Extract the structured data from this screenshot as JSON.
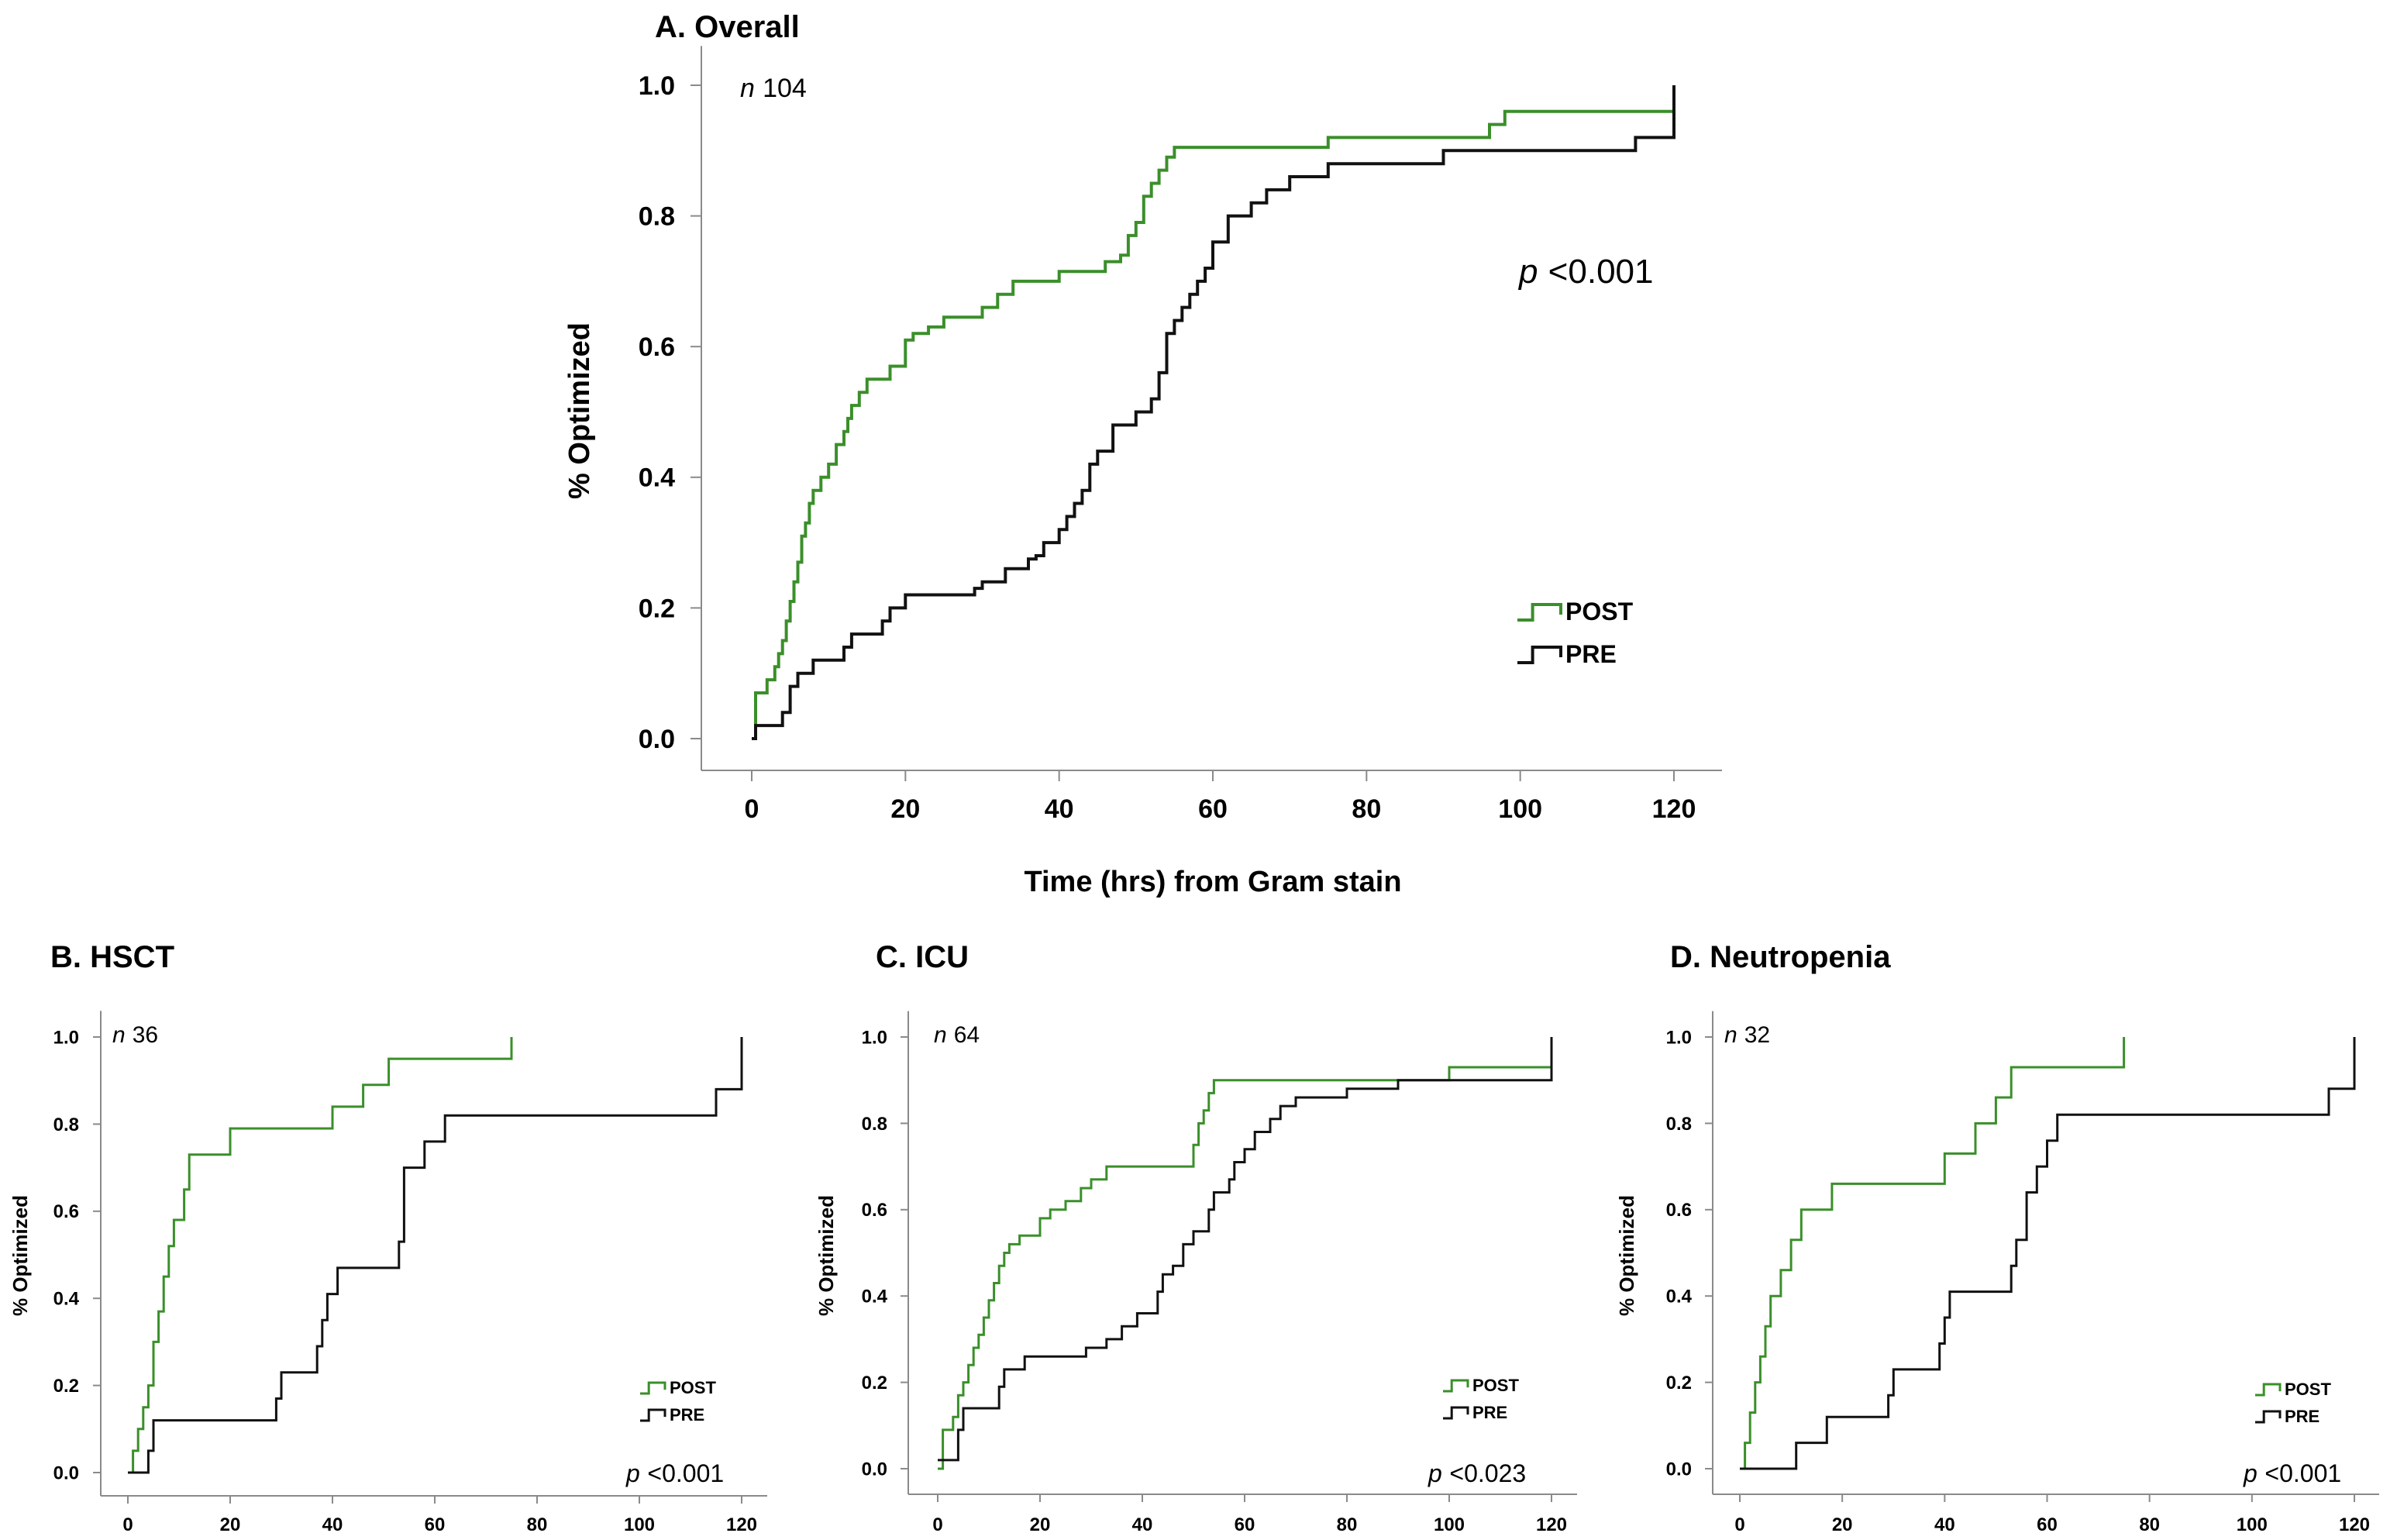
{
  "colors": {
    "post": "#3a8f2a",
    "pre": "#111111",
    "axis": "#8a8a8a",
    "text": "#000000"
  },
  "chart_data": [
    {
      "id": "A",
      "type": "line",
      "title": "A. Overall",
      "n_italic": "n",
      "n_value": "104",
      "xlabel": "Time (hrs) from Gram stain",
      "ylabel": "% Optimized",
      "xlim": [
        0,
        120
      ],
      "ylim": [
        0,
        1.0
      ],
      "x_ticks": [
        "0",
        "20",
        "40",
        "60",
        "80",
        "100",
        "120"
      ],
      "y_ticks": [
        "0.0",
        "0.2",
        "0.4",
        "0.6",
        "0.8",
        "1.0"
      ],
      "p_italic": "p",
      "p_value": "<0.001",
      "legend": [
        "POST",
        "PRE"
      ],
      "series": [
        {
          "name": "POST",
          "step": true,
          "x": [
            0,
            0.5,
            2,
            3,
            3.5,
            4,
            4.5,
            5,
            5.5,
            6,
            6.5,
            7,
            7.5,
            8,
            9,
            10,
            11,
            12,
            12.5,
            13,
            14,
            15,
            16,
            18,
            20,
            21,
            23,
            25,
            30,
            32,
            34,
            40,
            46,
            48,
            49,
            50,
            51,
            52,
            53,
            54,
            55,
            75,
            96,
            98,
            120
          ],
          "y": [
            0,
            0.07,
            0.09,
            0.11,
            0.13,
            0.15,
            0.18,
            0.21,
            0.24,
            0.27,
            0.31,
            0.33,
            0.36,
            0.38,
            0.4,
            0.42,
            0.45,
            0.47,
            0.49,
            0.51,
            0.53,
            0.55,
            0.55,
            0.57,
            0.61,
            0.62,
            0.63,
            0.645,
            0.66,
            0.68,
            0.7,
            0.715,
            0.73,
            0.74,
            0.77,
            0.79,
            0.83,
            0.85,
            0.87,
            0.89,
            0.905,
            0.92,
            0.94,
            0.96,
            0.96
          ]
        },
        {
          "name": "PRE",
          "step": true,
          "x": [
            0,
            0.5,
            4,
            5,
            6,
            8,
            12,
            13,
            17,
            18,
            20,
            29,
            30,
            33,
            36,
            37,
            38,
            40,
            41,
            42,
            43,
            44,
            45,
            47,
            50,
            52,
            53,
            54,
            55,
            56,
            57,
            58,
            59,
            60,
            62,
            65,
            67,
            70,
            75,
            80,
            90,
            115,
            120
          ],
          "y": [
            0,
            0.02,
            0.04,
            0.08,
            0.1,
            0.12,
            0.14,
            0.16,
            0.18,
            0.2,
            0.22,
            0.23,
            0.24,
            0.26,
            0.275,
            0.28,
            0.3,
            0.32,
            0.34,
            0.36,
            0.38,
            0.42,
            0.44,
            0.48,
            0.5,
            0.52,
            0.56,
            0.62,
            0.64,
            0.66,
            0.68,
            0.7,
            0.72,
            0.76,
            0.8,
            0.82,
            0.84,
            0.86,
            0.88,
            0.88,
            0.9,
            0.92,
            1.0
          ]
        }
      ]
    },
    {
      "id": "B",
      "type": "line",
      "title": "B. HSCT",
      "n_italic": "n",
      "n_value": "36",
      "xlabel": "",
      "ylabel": "% Optimized",
      "xlim": [
        0,
        120
      ],
      "ylim": [
        0,
        1.0
      ],
      "x_ticks": [
        "0",
        "20",
        "40",
        "60",
        "80",
        "100",
        "120"
      ],
      "y_ticks": [
        "0.0",
        "0.2",
        "0.4",
        "0.6",
        "0.8",
        "1.0"
      ],
      "p_italic": "p",
      "p_value": "<0.001",
      "legend": [
        "POST",
        "PRE"
      ],
      "series": [
        {
          "name": "POST",
          "step": true,
          "x": [
            0,
            1,
            2,
            3,
            4,
            5,
            6,
            7,
            8,
            9,
            11,
            12,
            20,
            40,
            46,
            51,
            75
          ],
          "y": [
            0,
            0.05,
            0.1,
            0.15,
            0.2,
            0.3,
            0.37,
            0.45,
            0.52,
            0.58,
            0.65,
            0.73,
            0.79,
            0.84,
            0.89,
            0.95,
            1.0
          ]
        },
        {
          "name": "PRE",
          "step": true,
          "x": [
            0,
            4,
            5,
            29,
            30,
            37,
            38,
            39,
            41,
            43,
            53,
            54,
            58,
            62,
            115,
            120
          ],
          "y": [
            0,
            0.05,
            0.12,
            0.17,
            0.23,
            0.29,
            0.35,
            0.41,
            0.47,
            0.47,
            0.53,
            0.7,
            0.76,
            0.82,
            0.88,
            1.0
          ]
        }
      ]
    },
    {
      "id": "C",
      "type": "line",
      "title": "C. ICU",
      "n_italic": "n",
      "n_value": "64",
      "xlabel": "",
      "ylabel": "% Optimized",
      "xlim": [
        0,
        120
      ],
      "ylim": [
        0,
        1.0
      ],
      "x_ticks": [
        "0",
        "20",
        "40",
        "60",
        "80",
        "100",
        "120"
      ],
      "y_ticks": [
        "0.0",
        "0.2",
        "0.4",
        "0.6",
        "0.8",
        "1.0"
      ],
      "p_italic": "p",
      "p_value": "<0.023",
      "legend": [
        "POST",
        "PRE"
      ],
      "series": [
        {
          "name": "POST",
          "step": true,
          "x": [
            0,
            1,
            3,
            4,
            5,
            6,
            7,
            8,
            9,
            10,
            11,
            12,
            13,
            14,
            16,
            20,
            22,
            25,
            28,
            30,
            33,
            40,
            50,
            51,
            52,
            53,
            54,
            55,
            100,
            120
          ],
          "y": [
            0,
            0.09,
            0.12,
            0.17,
            0.2,
            0.24,
            0.28,
            0.31,
            0.35,
            0.39,
            0.43,
            0.47,
            0.5,
            0.52,
            0.54,
            0.58,
            0.6,
            0.62,
            0.65,
            0.67,
            0.7,
            0.7,
            0.75,
            0.8,
            0.83,
            0.87,
            0.9,
            0.9,
            0.93,
            0.93
          ]
        },
        {
          "name": "PRE",
          "step": true,
          "x": [
            0,
            4,
            5,
            12,
            13,
            17,
            29,
            33,
            36,
            39,
            43,
            44,
            46,
            48,
            50,
            53,
            54,
            57,
            58,
            60,
            62,
            65,
            67,
            70,
            80,
            90,
            120
          ],
          "y": [
            0.02,
            0.09,
            0.14,
            0.19,
            0.23,
            0.26,
            0.28,
            0.3,
            0.33,
            0.36,
            0.41,
            0.45,
            0.47,
            0.52,
            0.55,
            0.6,
            0.64,
            0.67,
            0.71,
            0.74,
            0.78,
            0.81,
            0.84,
            0.86,
            0.88,
            0.9,
            1.0
          ]
        }
      ]
    },
    {
      "id": "D",
      "type": "line",
      "title": "D. Neutropenia",
      "n_italic": "n",
      "n_value": "32",
      "xlabel": "",
      "ylabel": "% Optimized",
      "xlim": [
        0,
        120
      ],
      "ylim": [
        0,
        1.0
      ],
      "x_ticks": [
        "0",
        "20",
        "40",
        "60",
        "80",
        "100",
        "120"
      ],
      "y_ticks": [
        "0.0",
        "0.2",
        "0.4",
        "0.6",
        "0.8",
        "1.0"
      ],
      "p_italic": "p",
      "p_value": "<0.001",
      "legend": [
        "POST",
        "PRE"
      ],
      "series": [
        {
          "name": "POST",
          "step": true,
          "x": [
            0,
            1,
            2,
            3,
            4,
            5,
            6,
            8,
            10,
            12,
            18,
            40,
            46,
            50,
            53,
            75
          ],
          "y": [
            0,
            0.06,
            0.13,
            0.2,
            0.26,
            0.33,
            0.4,
            0.46,
            0.53,
            0.6,
            0.66,
            0.73,
            0.8,
            0.86,
            0.93,
            1.0
          ]
        },
        {
          "name": "PRE",
          "step": true,
          "x": [
            0,
            11,
            12,
            17,
            29,
            30,
            39,
            40,
            41,
            43,
            53,
            54,
            56,
            58,
            60,
            62,
            115,
            120
          ],
          "y": [
            0,
            0.06,
            0.06,
            0.12,
            0.17,
            0.23,
            0.29,
            0.35,
            0.41,
            0.41,
            0.47,
            0.53,
            0.64,
            0.7,
            0.76,
            0.82,
            0.88,
            1.0
          ]
        }
      ]
    }
  ]
}
